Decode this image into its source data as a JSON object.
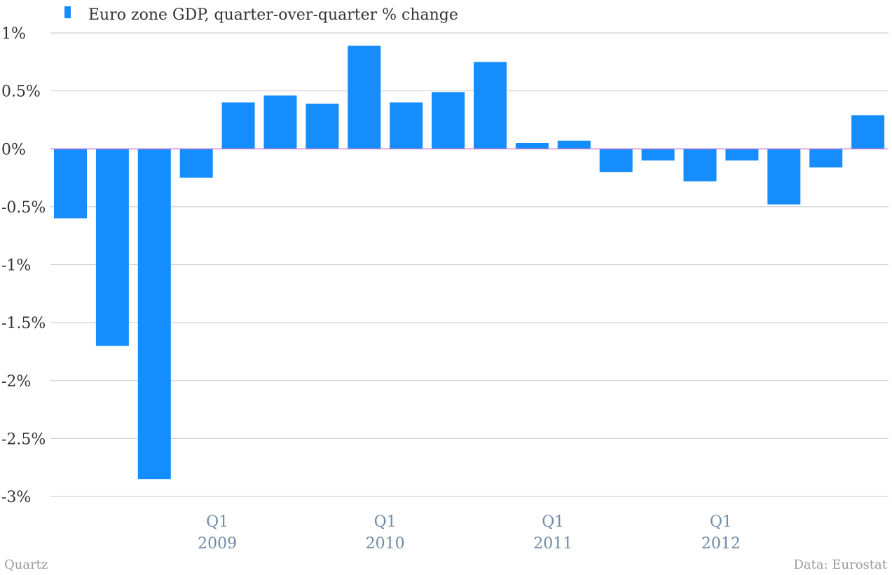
{
  "chart_data": {
    "type": "bar",
    "series": [
      {
        "name": "Euro zone GDP, quarter-over-quarter % change",
        "color": "#168dfd",
        "values": [
          -0.6,
          -1.7,
          -2.85,
          -0.25,
          0.4,
          0.46,
          0.39,
          0.89,
          0.4,
          0.49,
          0.75,
          0.05,
          0.07,
          -0.2,
          -0.1,
          -0.28,
          -0.1,
          -0.48,
          -0.16,
          0.29
        ]
      }
    ],
    "ylim": [
      -3,
      1
    ],
    "yticks": [
      {
        "value": 1,
        "label": "1%"
      },
      {
        "value": 0.5,
        "label": "0.5%"
      },
      {
        "value": 0,
        "label": "0%"
      },
      {
        "value": -0.5,
        "label": "-0.5%"
      },
      {
        "value": -1,
        "label": "-1%"
      },
      {
        "value": -1.5,
        "label": "-1.5%"
      },
      {
        "value": -2,
        "label": "-2%"
      },
      {
        "value": -2.5,
        "label": "-2.5%"
      },
      {
        "value": -3,
        "label": "-3%"
      }
    ],
    "xticks": [
      {
        "index": 4,
        "quarter": "Q1",
        "year": "2009"
      },
      {
        "index": 8,
        "quarter": "Q1",
        "year": "2010"
      },
      {
        "index": 12,
        "quarter": "Q1",
        "year": "2011"
      },
      {
        "index": 16,
        "quarter": "Q1",
        "year": "2012"
      }
    ],
    "grid": true,
    "legend_position": "top-left",
    "zero_line_color": "#c875c4"
  },
  "credits": {
    "source_left": "Quartz",
    "source_right": "Data: Eurostat"
  }
}
